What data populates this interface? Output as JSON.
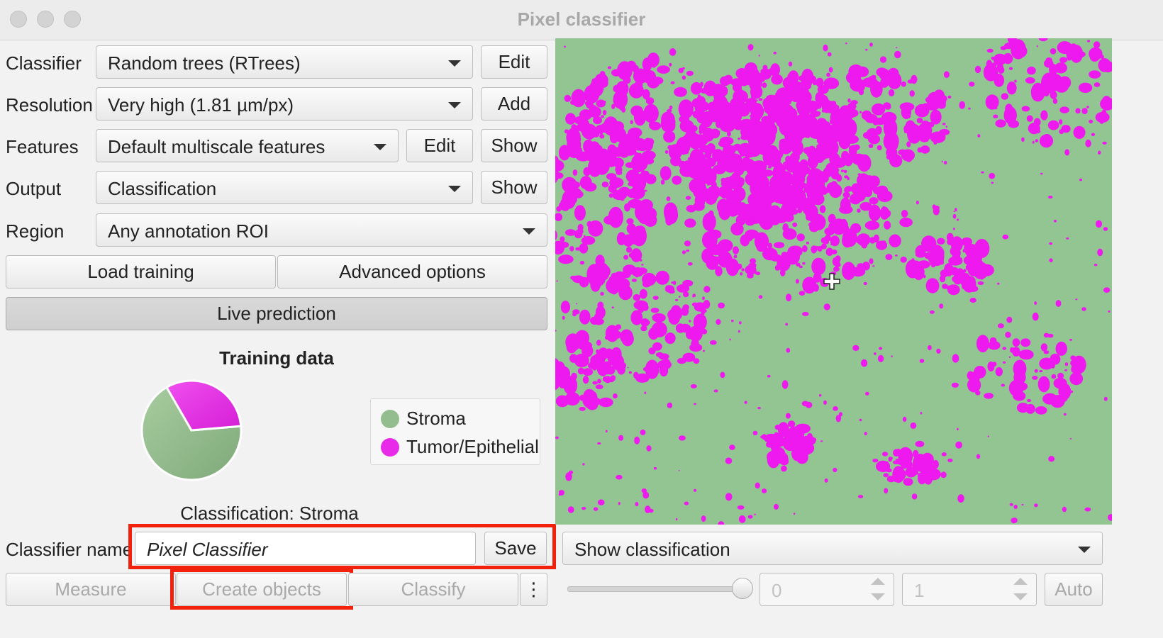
{
  "window": {
    "title": "Pixel classifier"
  },
  "rows": {
    "classifier": {
      "label": "Classifier",
      "value": "Random trees (RTrees)",
      "button": "Edit"
    },
    "resolution": {
      "label": "Resolution",
      "value": "Very high (1.81 µm/px)",
      "button": "Add"
    },
    "features": {
      "label": "Features",
      "value": "Default multiscale features",
      "edit": "Edit",
      "show": "Show"
    },
    "output": {
      "label": "Output",
      "value": "Classification",
      "button": "Show"
    },
    "region": {
      "label": "Region",
      "value": "Any annotation ROI"
    }
  },
  "buttons": {
    "load_training": "Load training",
    "advanced_options": "Advanced options",
    "live_prediction": "Live prediction"
  },
  "training": {
    "title": "Training data",
    "legend": [
      {
        "name": "Stroma",
        "color": "#8fb98a",
        "fraction": 0.68
      },
      {
        "name": "Tumor/Epithelial",
        "color": "#e82be8",
        "fraction": 0.32
      }
    ],
    "status": "Classification: Stroma"
  },
  "classifier_name": {
    "label": "Classifier name",
    "value": "Pixel Classifier",
    "save": "Save"
  },
  "bottom": {
    "measure": "Measure",
    "create_objects": "Create objects",
    "classify": "Classify",
    "more": "⋮"
  },
  "overlay": {
    "mode": "Show classification",
    "slider_value": 1.0,
    "min": "0",
    "max": "1",
    "auto": "Auto"
  },
  "colors": {
    "stroma": "#93c592",
    "tumor": "#ee19ee",
    "highlight": "#f2210c"
  }
}
